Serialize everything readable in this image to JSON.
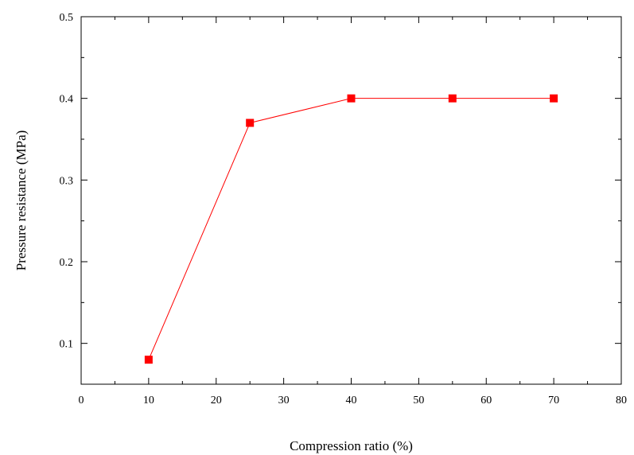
{
  "chart_data": {
    "type": "line",
    "title": "",
    "xlabel": "Compression ratio (%)",
    "ylabel": "Pressure resistance (MPa)",
    "xlim": [
      0,
      80
    ],
    "ylim": [
      0.05,
      0.5
    ],
    "x_ticks": [
      0,
      10,
      20,
      30,
      40,
      50,
      60,
      70,
      80
    ],
    "y_ticks": [
      0.1,
      0.2,
      0.3,
      0.4,
      0.5
    ],
    "x_tick_labels": [
      "0",
      "10",
      "20",
      "30",
      "40",
      "50",
      "60",
      "70",
      "80"
    ],
    "y_tick_labels": [
      "0.1",
      "0.2",
      "0.3",
      "0.4",
      "0.5"
    ],
    "grid": false,
    "legend": "none",
    "series": [
      {
        "x": [
          10,
          25,
          40,
          55,
          70
        ],
        "y": [
          0.08,
          0.37,
          0.4,
          0.4,
          0.4
        ],
        "color": "#ff0000",
        "marker": "square"
      }
    ]
  }
}
